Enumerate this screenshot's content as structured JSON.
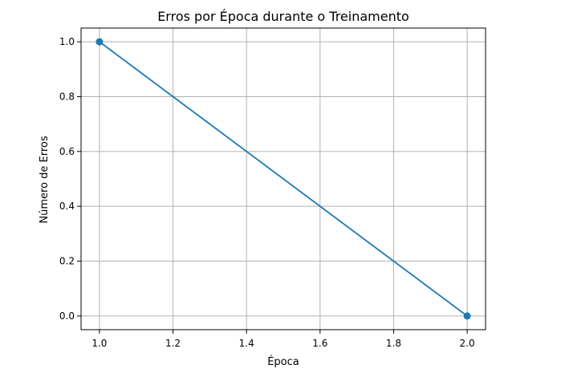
{
  "chart_data": {
    "type": "line",
    "title": "Erros por Época durante o Treinamento",
    "xlabel": "Época",
    "ylabel": "Número de Erros",
    "xlim": [
      0.95,
      2.05
    ],
    "ylim": [
      -0.05,
      1.05
    ],
    "xticks": [
      "1.0",
      "1.2",
      "1.4",
      "1.6",
      "1.8",
      "2.0"
    ],
    "yticks": [
      "0.0",
      "0.2",
      "0.4",
      "0.6",
      "0.8",
      "1.0"
    ],
    "grid": true,
    "series": [
      {
        "color": "#1f77b4",
        "marker": "circle",
        "x": [
          1,
          2
        ],
        "y": [
          1,
          0
        ]
      }
    ]
  }
}
